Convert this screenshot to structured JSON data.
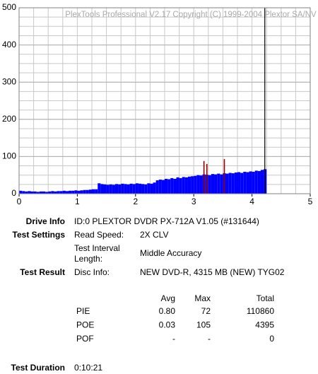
{
  "chart_data": {
    "type": "bar",
    "title": "PlexTools Professional V2.17 Copyright (C) 1999-2004 Plextor SA/NV",
    "x": [
      0,
      0.05,
      0.1,
      0.15,
      0.2,
      0.25,
      0.3,
      0.35,
      0.4,
      0.45,
      0.5,
      0.55,
      0.6,
      0.65,
      0.7,
      0.75,
      0.8,
      0.85,
      0.9,
      0.95,
      1,
      1.05,
      1.1,
      1.15,
      1.2,
      1.25,
      1.3,
      1.35,
      1.4,
      1.45,
      1.5,
      1.55,
      1.6,
      1.65,
      1.7,
      1.75,
      1.8,
      1.85,
      1.9,
      1.95,
      2,
      2.05,
      2.1,
      2.15,
      2.2,
      2.25,
      2.3,
      2.35,
      2.4,
      2.45,
      2.5,
      2.55,
      2.6,
      2.65,
      2.7,
      2.75,
      2.8,
      2.85,
      2.9,
      2.95,
      3,
      3.05,
      3.1,
      3.15,
      3.2,
      3.25,
      3.3,
      3.35,
      3.4,
      3.45,
      3.5,
      3.55,
      3.6,
      3.65,
      3.7,
      3.75,
      3.8,
      3.85,
      3.9,
      3.95,
      4,
      4.05,
      4.1,
      4.15,
      4.2
    ],
    "bar_width": 0.05,
    "series": [
      {
        "color": "#0000ff",
        "values": [
          8,
          7,
          6,
          7,
          6,
          6,
          5,
          6,
          6,
          5,
          6,
          7,
          6,
          7,
          7,
          8,
          7,
          8,
          8,
          9,
          8,
          9,
          10,
          10,
          11,
          12,
          12,
          28,
          26,
          25,
          24,
          25,
          24,
          26,
          25,
          27,
          26,
          25,
          27,
          26,
          28,
          27,
          26,
          25,
          28,
          27,
          30,
          36,
          38,
          37,
          40,
          39,
          42,
          40,
          44,
          42,
          45,
          44,
          46,
          47,
          48,
          50,
          49,
          52,
          51,
          50,
          53,
          52,
          54,
          52,
          55,
          54,
          56,
          55,
          57,
          58,
          56,
          59,
          58,
          60,
          59,
          62,
          61,
          64,
          66
        ]
      },
      {
        "color": "#990000",
        "values": [
          null,
          null,
          null,
          null,
          null,
          null,
          null,
          null,
          null,
          null,
          null,
          null,
          null,
          null,
          null,
          null,
          null,
          null,
          null,
          null,
          null,
          null,
          null,
          null,
          null,
          null,
          null,
          null,
          null,
          null,
          null,
          null,
          null,
          null,
          null,
          null,
          null,
          null,
          null,
          null,
          null,
          null,
          null,
          null,
          null,
          null,
          null,
          null,
          null,
          null,
          null,
          null,
          null,
          null,
          null,
          null,
          null,
          null,
          null,
          null,
          null,
          null,
          null,
          88,
          80,
          null,
          null,
          null,
          null,
          null,
          93,
          null,
          null,
          null,
          null,
          null,
          null,
          null,
          null,
          null,
          null,
          null,
          null,
          null,
          null
        ]
      }
    ],
    "marker_x": 4.22,
    "xlim": [
      0,
      5
    ],
    "xticks": [
      0,
      1,
      2,
      3,
      4,
      5
    ],
    "ylim": [
      0,
      500
    ],
    "yticks": [
      0,
      100,
      200,
      300,
      400,
      500
    ],
    "grid": true,
    "minor_grid": {
      "x": 0.25,
      "y": 25
    }
  },
  "info": {
    "drive_info": {
      "label": "Drive Info",
      "value": "ID:0 PLEXTOR DVDR PX-712A V1.05 (#131644)"
    },
    "test_settings": {
      "label": "Test Settings",
      "read_speed_label": "Read Speed:",
      "read_speed": "2X CLV",
      "interval_label_1": "Test Interval",
      "interval_label_2": "Length:",
      "interval": "Middle Accuracy"
    },
    "test_result": {
      "label": "Test Result",
      "disc_label": "Disc Info:",
      "disc": "NEW DVD-R, 4315 MB (NEW) TYG02"
    },
    "table": {
      "header": [
        "Avg",
        "Max",
        "Total"
      ],
      "rows": [
        [
          "PIE",
          "0.80",
          "72",
          "110860"
        ],
        [
          "POE",
          "0.03",
          "105",
          "4395"
        ],
        [
          "POF",
          "-",
          "-",
          "0"
        ]
      ]
    },
    "test_duration": {
      "label": "Test Duration",
      "value": "0:10:21"
    }
  }
}
